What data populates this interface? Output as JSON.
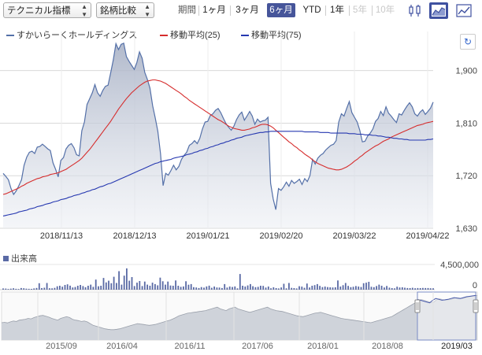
{
  "toolbar": {
    "technical_select": "テクニカル指標",
    "compare_select": "銘柄比較",
    "period_label": "期間",
    "periods": [
      "1ヶ月",
      "3ヶ月",
      "6ヶ月",
      "YTD",
      "1年",
      "5年",
      "10年"
    ],
    "active_period": "6ヶ月",
    "disabled_periods": [
      "5年",
      "10年"
    ],
    "icons": [
      "candlestick-chart-icon",
      "area-chart-icon",
      "line-chart-icon"
    ]
  },
  "legend": [
    {
      "name": "すかいらーくホールディングス",
      "color": "#5470a8"
    },
    {
      "name": "移動平均(25)",
      "color": "#d62d2d"
    },
    {
      "name": "移動平均(75)",
      "color": "#2638b0"
    }
  ],
  "volume_label": "出来高",
  "chart_data": [
    {
      "type": "area",
      "title": "",
      "x_ticks": [
        "2018/11/13",
        "2018/12/13",
        "2019/01/21",
        "2019/02/20",
        "2019/03/22",
        "2019/04/22"
      ],
      "y_ticks": [
        1630,
        1720,
        1810,
        1900
      ],
      "ylim": [
        1630,
        1940
      ],
      "grid": true,
      "series": [
        {
          "name": "すかいらーくホールディングス",
          "values": [
            1724,
            1719,
            1713,
            1698,
            1688,
            1694,
            1703,
            1713,
            1738,
            1752,
            1760,
            1762,
            1758,
            1769,
            1770,
            1774,
            1770,
            1766,
            1763,
            1742,
            1731,
            1718,
            1746,
            1751,
            1766,
            1772,
            1775,
            1768,
            1756,
            1754,
            1797,
            1812,
            1842,
            1852,
            1862,
            1876,
            1862,
            1856,
            1866,
            1873,
            1875,
            1896,
            1918,
            1946,
            1936,
            1945,
            1947,
            1924,
            1916,
            1909,
            1902,
            1914,
            1932,
            1921,
            1897,
            1885,
            1870,
            1840,
            1819,
            1796,
            1758,
            1703,
            1724,
            1721,
            1729,
            1738,
            1730,
            1736,
            1748,
            1755,
            1760,
            1772,
            1775,
            1780,
            1775,
            1784,
            1800,
            1812,
            1813,
            1823,
            1826,
            1832,
            1835,
            1828,
            1818,
            1809,
            1803,
            1798,
            1805,
            1816,
            1824,
            1829,
            1815,
            1822,
            1830,
            1822,
            1808,
            1817,
            1812,
            1814,
            1815,
            1820,
            1707,
            1680,
            1662,
            1698,
            1695,
            1701,
            1709,
            1702,
            1712,
            1707,
            1710,
            1714,
            1705,
            1715,
            1710,
            1720,
            1748,
            1740,
            1750,
            1755,
            1758,
            1764,
            1768,
            1772,
            1774,
            1780,
            1812,
            1826,
            1822,
            1835,
            1847,
            1828,
            1820,
            1812,
            1798,
            1778,
            1779,
            1788,
            1793,
            1800,
            1813,
            1818,
            1830,
            1823,
            1838,
            1827,
            1822,
            1816,
            1811,
            1826,
            1824,
            1832,
            1839,
            1845,
            1838,
            1826,
            1822,
            1829,
            1833,
            1825,
            1830,
            1836,
            1846
          ]
        },
        {
          "name": "移動平均(25)",
          "values": [
            1688,
            1689,
            1691,
            1693,
            1695,
            1697,
            1699,
            1702,
            1704,
            1707,
            1709,
            1711,
            1713,
            1715,
            1716,
            1718,
            1719,
            1720,
            1722,
            1723,
            1724,
            1725,
            1727,
            1729,
            1731,
            1734,
            1737,
            1740,
            1743,
            1746,
            1750,
            1755,
            1760,
            1765,
            1771,
            1777,
            1783,
            1789,
            1795,
            1801,
            1807,
            1813,
            1820,
            1827,
            1834,
            1840,
            1846,
            1852,
            1857,
            1862,
            1866,
            1870,
            1874,
            1877,
            1880,
            1882,
            1883,
            1884,
            1884,
            1883,
            1882,
            1880,
            1878,
            1875,
            1872,
            1869,
            1866,
            1863,
            1860,
            1856,
            1853,
            1849,
            1846,
            1843,
            1840,
            1837,
            1834,
            1831,
            1828,
            1825,
            1822,
            1819,
            1816,
            1814,
            1811,
            1808,
            1805,
            1803,
            1801,
            1800,
            1799,
            1798,
            1798,
            1799,
            1800,
            1802,
            1803,
            1805,
            1807,
            1808,
            1808,
            1807,
            1805,
            1802,
            1798,
            1794,
            1790,
            1786,
            1782,
            1778,
            1775,
            1771,
            1768,
            1764,
            1761,
            1757,
            1754,
            1751,
            1747,
            1744,
            1741,
            1739,
            1737,
            1735,
            1733,
            1732,
            1731,
            1730,
            1730,
            1731,
            1733,
            1735,
            1738,
            1741,
            1745,
            1748,
            1752,
            1755,
            1759,
            1762,
            1765,
            1768,
            1771,
            1773,
            1776,
            1779,
            1781,
            1783,
            1786,
            1788,
            1790,
            1792,
            1794,
            1796,
            1798,
            1800,
            1802,
            1804,
            1806,
            1807,
            1808,
            1810,
            1811,
            1812,
            1813
          ]
        },
        {
          "name": "移動平均(75)",
          "values": [
            1651,
            1652,
            1653,
            1654,
            1655,
            1656,
            1658,
            1659,
            1660,
            1661,
            1663,
            1664,
            1665,
            1667,
            1668,
            1669,
            1671,
            1672,
            1673,
            1675,
            1676,
            1677,
            1679,
            1680,
            1681,
            1683,
            1684,
            1686,
            1687,
            1688,
            1690,
            1691,
            1693,
            1694,
            1696,
            1697,
            1699,
            1701,
            1702,
            1704,
            1706,
            1707,
            1709,
            1711,
            1713,
            1715,
            1717,
            1719,
            1721,
            1723,
            1725,
            1727,
            1729,
            1731,
            1733,
            1735,
            1737,
            1739,
            1741,
            1742,
            1744,
            1745,
            1746,
            1747,
            1748,
            1750,
            1751,
            1752,
            1753,
            1754,
            1756,
            1757,
            1758,
            1760,
            1761,
            1763,
            1764,
            1766,
            1767,
            1769,
            1770,
            1772,
            1773,
            1775,
            1776,
            1778,
            1779,
            1781,
            1782,
            1784,
            1785,
            1786,
            1788,
            1789,
            1790,
            1791,
            1792,
            1793,
            1794,
            1794,
            1795,
            1795,
            1796,
            1796,
            1796,
            1796,
            1796,
            1796,
            1796,
            1796,
            1796,
            1796,
            1796,
            1796,
            1796,
            1795,
            1795,
            1795,
            1795,
            1795,
            1795,
            1794,
            1794,
            1794,
            1794,
            1793,
            1793,
            1793,
            1793,
            1793,
            1793,
            1793,
            1792,
            1792,
            1792,
            1791,
            1791,
            1791,
            1790,
            1790,
            1790,
            1789,
            1789,
            1788,
            1788,
            1787,
            1786,
            1786,
            1785,
            1784,
            1784,
            1783,
            1783,
            1782,
            1782,
            1781,
            1781,
            1781,
            1781,
            1781,
            1781,
            1781,
            1782,
            1782,
            1783
          ]
        }
      ]
    },
    {
      "type": "bar",
      "title": "出来高",
      "y_ticks": [
        0,
        4500000
      ],
      "ylim": [
        0,
        4500000
      ],
      "series": [
        {
          "name": "出来高",
          "values": [
            220000,
            200000,
            120000,
            180000,
            260000,
            150000,
            130000,
            300000,
            250000,
            180000,
            160000,
            140000,
            220000,
            310000,
            1150000,
            280000,
            350000,
            1200000,
            250000,
            240000,
            320000,
            600000,
            700000,
            540000,
            850000,
            950000,
            720000,
            400000,
            480000,
            700000,
            840000,
            650000,
            430000,
            700000,
            900000,
            500000,
            1800000,
            600000,
            700000,
            2100000,
            1300000,
            1600000,
            1150000,
            2300000,
            1200000,
            3300000,
            900000,
            2500000,
            3800000,
            1600000,
            2250000,
            650000,
            1250000,
            1550000,
            650000,
            1450000,
            900000,
            700000,
            1250000,
            1000000,
            780000,
            2150000,
            1500000,
            900000,
            1450000,
            750000,
            700000,
            1650000,
            700000,
            500000,
            580000,
            1500000,
            880000,
            1000000,
            450000,
            400000,
            300000,
            460000,
            360000,
            570000,
            720000,
            340000,
            560000,
            400000,
            380000,
            300000,
            1000000,
            380000,
            560000,
            480000,
            580000,
            240000,
            2800000,
            700000,
            560000,
            760000,
            1000000,
            620000,
            450000,
            500000,
            700000,
            680000,
            380000,
            560000,
            260000,
            420000,
            280000,
            220000,
            400000,
            1050000,
            240000,
            1200000,
            330000,
            280000,
            220000,
            620000,
            550000,
            340000,
            1100000,
            400000,
            700000,
            820000,
            1000000,
            680000,
            460000,
            560000,
            470000,
            420000,
            390000,
            420000,
            1650000,
            560000,
            800000,
            1200000,
            680000,
            450000,
            520000,
            650000,
            560000,
            480000,
            1150000,
            1250000,
            1400000,
            520000,
            450000,
            650000,
            900000,
            700000,
            390000,
            660000,
            360000,
            280000,
            240000,
            540000,
            400000,
            420000,
            350000,
            300000,
            280000,
            340000,
            260000,
            300000,
            280000,
            310000,
            300000,
            290000,
            260000,
            260000
          ]
        }
      ]
    },
    {
      "type": "area",
      "title": "",
      "x_ticks": [
        "2015/09",
        "2016/04",
        "2016/11",
        "2017/06",
        "2018/01",
        "2018/08",
        "2019/03"
      ],
      "selected_range": [
        "2018/11/13",
        "2019/04/22"
      ],
      "series": [
        {
          "name": "すかいらーくホールディングス",
          "values": [
            1530,
            1535,
            1528,
            1540,
            1550,
            1545,
            1560,
            1565,
            1570,
            1580,
            1575,
            1590,
            1600,
            1610,
            1615,
            1605,
            1595,
            1580,
            1570,
            1560,
            1580,
            1590,
            1600,
            1590,
            1570,
            1560,
            1555,
            1545,
            1550,
            1540,
            1520,
            1500,
            1490,
            1480,
            1470,
            1460,
            1455,
            1450,
            1450,
            1455,
            1460,
            1470,
            1480,
            1490,
            1500,
            1510,
            1520,
            1515,
            1510,
            1505,
            1500,
            1505,
            1510,
            1520,
            1530,
            1540,
            1550,
            1560,
            1575,
            1590,
            1610,
            1620,
            1630,
            1640,
            1645,
            1650,
            1655,
            1660,
            1665,
            1670,
            1680,
            1690,
            1700,
            1710,
            1690,
            1680,
            1670,
            1690,
            1700,
            1710,
            1690,
            1680,
            1670,
            1660,
            1650,
            1660,
            1670,
            1680,
            1690,
            1700,
            1710,
            1690,
            1680,
            1670,
            1665,
            1660,
            1650,
            1640,
            1630,
            1620,
            1610,
            1605,
            1600,
            1610,
            1620,
            1630,
            1640,
            1645,
            1650,
            1640,
            1630,
            1620,
            1610,
            1600,
            1590,
            1580,
            1575,
            1570,
            1565,
            1560,
            1555,
            1550,
            1545,
            1540,
            1535,
            1530,
            1540,
            1550,
            1560,
            1570,
            1580,
            1590,
            1600,
            1620,
            1640,
            1660,
            1680,
            1700,
            1720,
            1740,
            1760,
            1780,
            1800,
            1790,
            1780,
            1770,
            1760,
            1790,
            1810,
            1800,
            1790,
            1795,
            1800,
            1810,
            1820,
            1815,
            1810,
            1820,
            1830,
            1835,
            1840,
            1845
          ]
        }
      ]
    }
  ]
}
